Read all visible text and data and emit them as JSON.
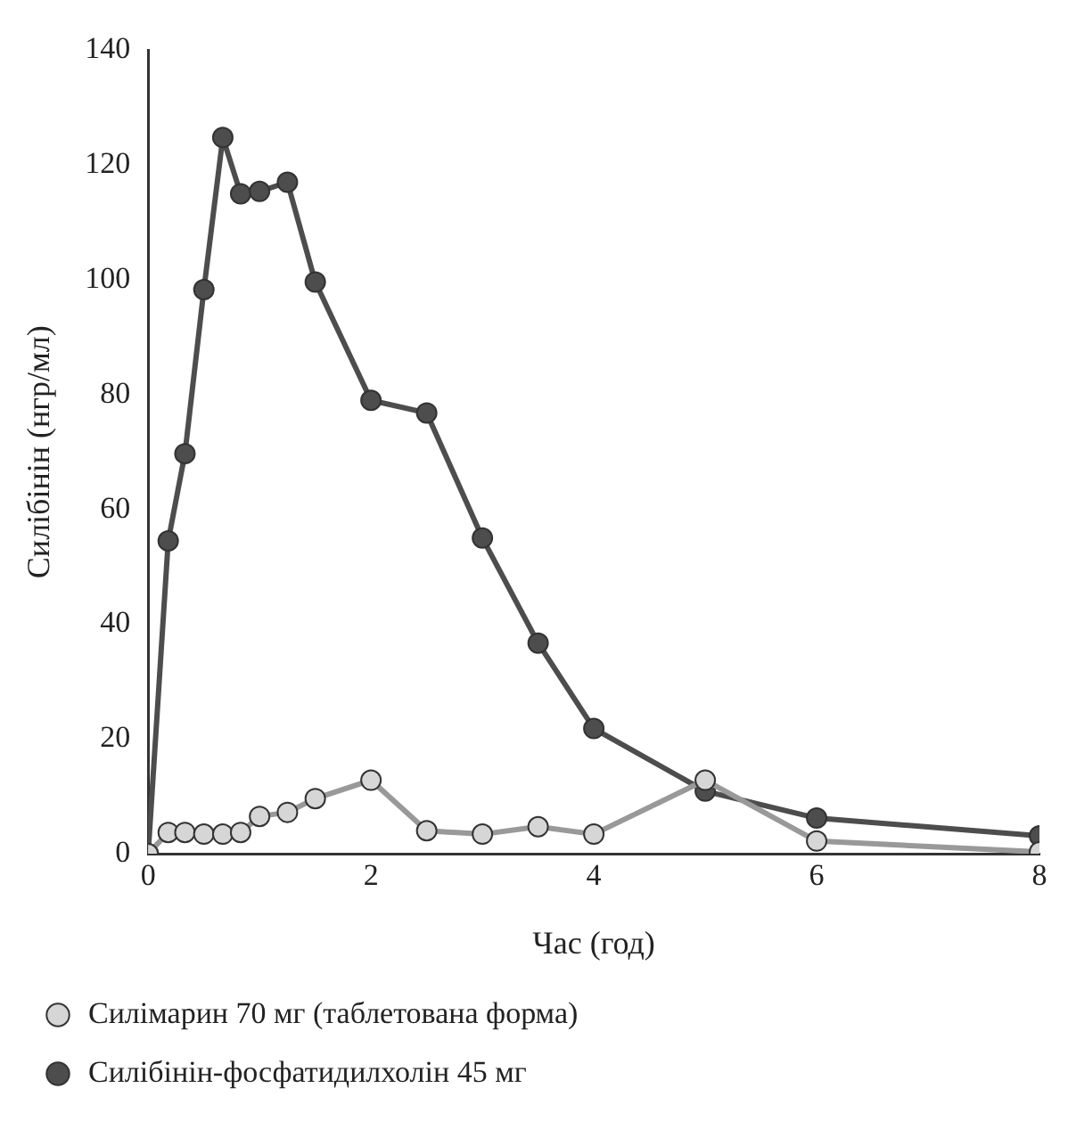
{
  "chart_data": {
    "type": "line",
    "xlabel": "Час (год)",
    "ylabel": "Силібінін (нгр/мл)",
    "xlim": [
      0,
      8
    ],
    "xticks": [
      0,
      2,
      4,
      6,
      8
    ],
    "ylim": [
      0,
      140
    ],
    "yticks": [
      0,
      20,
      40,
      60,
      80,
      100,
      120,
      140
    ],
    "grid": false,
    "legend": "bottom",
    "marker": "circle",
    "line_style": "solid",
    "series": [
      {
        "name": "Силібінін-фосфатидилхолін 45 мг",
        "color": "#4d4d4d",
        "x": [
          0,
          0.18,
          0.33,
          0.5,
          0.67,
          0.83,
          1,
          1.25,
          1.5,
          2,
          2.5,
          3,
          3.5,
          4,
          5,
          6,
          8
        ],
        "values": [
          0,
          54.5,
          69.7,
          98.3,
          124.8,
          115,
          115.4,
          117,
          99.6,
          79,
          76.8,
          55,
          36.7,
          21.8,
          10.9,
          6.2,
          3.1
        ]
      },
      {
        "name": "Силімарин 70 мг (таблетована форма)",
        "color": "#999999",
        "x": [
          0,
          0.18,
          0.33,
          0.5,
          0.67,
          0.83,
          1,
          1.25,
          1.5,
          2,
          2.5,
          3,
          3.5,
          4,
          5,
          6,
          8
        ],
        "values": [
          0,
          3.7,
          3.7,
          3.4,
          3.4,
          3.7,
          6.5,
          7.2,
          9.6,
          12.8,
          4,
          3.4,
          4.7,
          3.4,
          12.8,
          2.2,
          0.3
        ]
      }
    ]
  }
}
